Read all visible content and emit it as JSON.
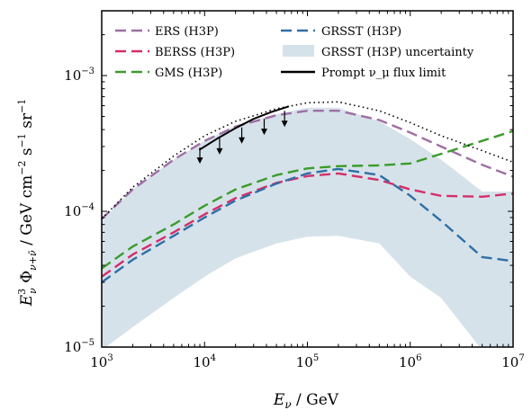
{
  "chart_data": {
    "type": "line",
    "xlabel": "E_ν / GeV",
    "ylabel": "E_ν^3 Φ_{ν+ν̄} / GeV cm^-2 s^-1 sr^-1",
    "xscale": "log",
    "yscale": "log",
    "xlim": [
      1000,
      10000000
    ],
    "ylim": [
      1e-05,
      0.003
    ],
    "x_ticks": [
      {
        "base": "10",
        "exp": "3",
        "value": 1000
      },
      {
        "base": "10",
        "exp": "4",
        "value": 10000
      },
      {
        "base": "10",
        "exp": "5",
        "value": 100000
      },
      {
        "base": "10",
        "exp": "6",
        "value": 1000000
      },
      {
        "base": "10",
        "exp": "7",
        "value": 10000000
      }
    ],
    "y_ticks": [
      {
        "base": "10",
        "exp": "−5",
        "value": 1e-05
      },
      {
        "base": "10",
        "exp": "−4",
        "value": 0.0001
      },
      {
        "base": "10",
        "exp": "−3",
        "value": 0.001
      }
    ],
    "grid": false,
    "legend_position": "top",
    "legend_columns": 2,
    "band": {
      "name": "GRSST (H3P) uncertainty",
      "color": "#d6e2ea",
      "x": [
        1000,
        2000,
        5000,
        10000,
        20000,
        50000,
        100000,
        200000,
        500000,
        1000000,
        2000000,
        5000000,
        10000000
      ],
      "upper": [
        8.5e-05,
        0.000145,
        0.00024,
        0.00033,
        0.00043,
        0.00052,
        0.00058,
        0.00058,
        0.00046,
        0.00034,
        0.00024,
        0.00014,
        0.00014
      ],
      "lower": [
        9.5e-06,
        1.4e-05,
        2.3e-05,
        3.3e-05,
        4.5e-05,
        5.8e-05,
        6.5e-05,
        6.6e-05,
        5.8e-05,
        3.3e-05,
        2.3e-05,
        9.5e-06,
        9.5e-06
      ]
    },
    "series": [
      {
        "name": "ERS (H3P)",
        "color": "#9e6fa4",
        "dash": "12,6",
        "x": [
          1000,
          2000,
          5000,
          10000,
          20000,
          50000,
          100000,
          200000,
          500000,
          1000000,
          2000000,
          5000000,
          10000000
        ],
        "values": [
          8.8e-05,
          0.000145,
          0.00024,
          0.00033,
          0.00042,
          0.00051,
          0.00055,
          0.00055,
          0.00047,
          0.00038,
          0.0003,
          0.00022,
          0.00018
        ]
      },
      {
        "name": "BERSS (H3P)",
        "color": "#d62d6a",
        "dash": "12,6",
        "x": [
          1000,
          2000,
          5000,
          10000,
          20000,
          50000,
          100000,
          200000,
          500000,
          1000000,
          2000000,
          5000000,
          10000000
        ],
        "values": [
          3.3e-05,
          4.8e-05,
          7e-05,
          9.5e-05,
          0.000125,
          0.000162,
          0.000182,
          0.00019,
          0.00017,
          0.000145,
          0.00013,
          0.000128,
          0.000135
        ]
      },
      {
        "name": "GMS (H3P)",
        "color": "#3a9c2a",
        "dash": "12,6",
        "x": [
          1000,
          2000,
          5000,
          10000,
          20000,
          50000,
          100000,
          200000,
          500000,
          1000000,
          2000000,
          5000000,
          10000000
        ],
        "values": [
          3.8e-05,
          5.5e-05,
          8e-05,
          0.00011,
          0.000145,
          0.000185,
          0.000207,
          0.000215,
          0.000218,
          0.000225,
          0.000265,
          0.00033,
          0.00039
        ]
      },
      {
        "name": "GRSST (H3P)",
        "color": "#2f6fa6",
        "dash": "12,6",
        "x": [
          1000,
          2000,
          5000,
          10000,
          20000,
          50000,
          100000,
          200000,
          500000,
          1000000,
          2000000,
          5000000,
          10000000
        ],
        "values": [
          3e-05,
          4.4e-05,
          6.6e-05,
          9e-05,
          0.00012,
          0.00016,
          0.00019,
          0.000205,
          0.000185,
          0.00013,
          8.5e-05,
          4.6e-05,
          4.3e-05
        ]
      },
      {
        "name": "",
        "color": "#000000",
        "dash": "1.5,3.5",
        "x": [
          1000,
          2000,
          5000,
          10000,
          20000,
          50000,
          100000,
          200000,
          500000,
          1000000,
          2000000,
          5000000,
          10000000
        ],
        "values": [
          8.8e-05,
          0.00015,
          0.000255,
          0.00036,
          0.00046,
          0.00057,
          0.00063,
          0.00064,
          0.00055,
          0.00045,
          0.00036,
          0.00028,
          0.00023
        ]
      },
      {
        "name": "Prompt ν_μ flux limit",
        "color": "#000000",
        "dash": "none",
        "x": [
          9000,
          13000,
          20000,
          30000,
          45000,
          65000
        ],
        "values": [
          0.000285,
          0.00034,
          0.00041,
          0.00048,
          0.00054,
          0.00059
        ]
      }
    ],
    "limit_arrows": {
      "x": [
        9000,
        14000,
        23000,
        38000,
        60000
      ],
      "values": [
        0.000295,
        0.000345,
        0.000415,
        0.00048,
        0.00055
      ]
    }
  }
}
